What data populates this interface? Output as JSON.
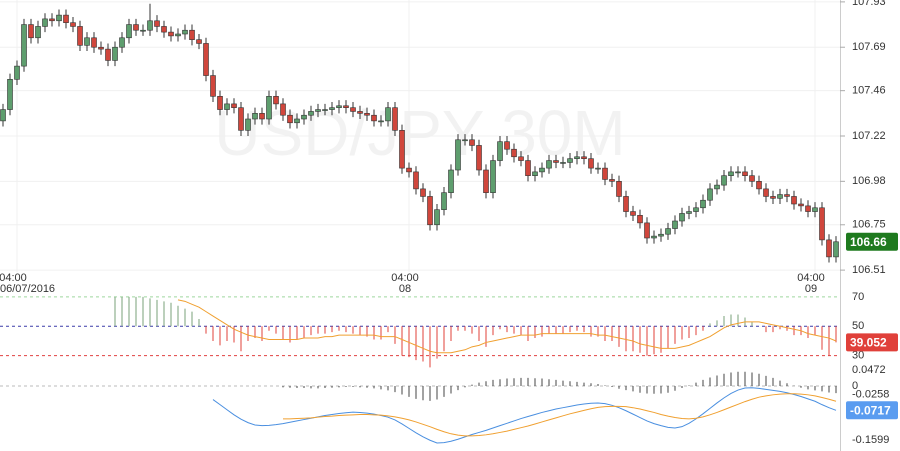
{
  "chart_data": {
    "type": "candlestick",
    "watermark": "USD/JPY 30M",
    "up_color": "#5e9e6e",
    "down_color": "#d0463c",
    "categories": [
      null,
      null,
      "04:00",
      null,
      null,
      null,
      null,
      null,
      null,
      null,
      null,
      null,
      null,
      null,
      null,
      null,
      null,
      null,
      null,
      null,
      null,
      null,
      null,
      null,
      null,
      null,
      null,
      null,
      null,
      null,
      null,
      null,
      null,
      null,
      null,
      null,
      null,
      null,
      null,
      null,
      null,
      null,
      null,
      null,
      null,
      null,
      null,
      null,
      null,
      null,
      null,
      null,
      null,
      null,
      null,
      null,
      null,
      null,
      "04:00",
      null,
      null,
      null,
      null,
      null,
      null,
      null,
      null,
      null,
      null,
      null,
      null,
      null,
      null,
      null,
      null,
      null,
      null,
      null,
      null,
      null,
      null,
      null,
      null,
      null,
      null,
      null,
      null,
      null,
      null,
      null,
      null,
      null,
      null,
      null,
      null,
      null,
      null,
      null,
      null,
      null,
      null,
      null,
      null,
      null,
      null,
      null,
      null,
      null,
      null,
      null,
      null,
      null,
      null,
      null,
      null,
      null,
      "04:00",
      null,
      null,
      null
    ],
    "category_dates": [
      null,
      null,
      "06/07/2016",
      null,
      null,
      null,
      null,
      null,
      null,
      null,
      null,
      null,
      null,
      null,
      null,
      null,
      null,
      null,
      null,
      null,
      null,
      null,
      null,
      null,
      null,
      null,
      null,
      null,
      null,
      null,
      null,
      null,
      null,
      null,
      null,
      null,
      null,
      null,
      null,
      null,
      null,
      null,
      null,
      null,
      null,
      null,
      null,
      null,
      null,
      null,
      null,
      null,
      null,
      null,
      null,
      null,
      null,
      null,
      "08",
      null,
      null,
      null,
      null,
      null,
      null,
      null,
      null,
      null,
      null,
      null,
      null,
      null,
      null,
      null,
      null,
      null,
      null,
      null,
      null,
      null,
      null,
      null,
      null,
      null,
      null,
      null,
      null,
      null,
      null,
      null,
      null,
      null,
      null,
      null,
      null,
      null,
      null,
      null,
      null,
      null,
      null,
      null,
      null,
      null,
      null,
      null,
      null,
      null,
      null,
      null,
      null,
      null,
      null,
      null,
      null,
      null,
      "09",
      null,
      null,
      null
    ],
    "open": [
      107.3,
      107.36,
      107.52,
      107.59,
      107.81,
      107.74,
      107.8,
      107.84,
      107.83,
      107.86,
      107.82,
      107.8,
      107.7,
      107.74,
      107.69,
      107.68,
      107.62,
      107.69,
      107.74,
      107.81,
      107.78,
      107.78,
      107.83,
      107.8,
      107.77,
      107.75,
      107.76,
      107.78,
      107.73,
      107.71,
      107.54,
      107.43,
      107.36,
      107.39,
      107.37,
      107.25,
      107.31,
      107.34,
      107.31,
      107.43,
      107.39,
      107.33,
      107.29,
      107.31,
      107.33,
      107.35,
      107.36,
      107.36,
      107.37,
      107.38,
      107.37,
      107.35,
      107.34,
      107.33,
      107.3,
      107.3,
      107.37,
      107.25,
      107.05,
      107.03,
      106.94,
      106.9,
      106.75,
      106.83,
      106.92,
      107.04,
      107.2,
      107.2,
      107.17,
      107.04,
      106.92,
      107.09,
      107.19,
      107.15,
      107.11,
      107.09,
      107.01,
      107.03,
      107.05,
      107.09,
      107.08,
      107.08,
      107.1,
      107.11,
      107.1,
      107.05,
      107.05,
      106.99,
      106.98,
      106.9,
      106.82,
      106.8,
      106.76,
      106.68,
      106.69,
      106.7,
      106.73,
      106.77,
      106.81,
      106.82,
      106.84,
      106.88,
      106.94,
      106.96,
      107.01,
      107.03,
      107.03,
      107.01,
      106.98,
      106.94,
      106.9,
      106.89,
      106.91,
      106.9,
      106.86,
      106.85,
      106.82,
      106.84,
      106.67,
      106.58
    ],
    "high": [
      107.39,
      107.55,
      107.62,
      107.84,
      107.84,
      107.83,
      107.87,
      107.87,
      107.89,
      107.89,
      107.85,
      107.83,
      107.77,
      107.77,
      107.72,
      107.71,
      107.72,
      107.77,
      107.84,
      107.84,
      107.81,
      107.92,
      107.86,
      107.83,
      107.8,
      107.79,
      107.81,
      107.81,
      107.76,
      107.74,
      107.57,
      107.46,
      107.42,
      107.42,
      107.4,
      107.34,
      107.37,
      107.37,
      107.46,
      107.46,
      107.42,
      107.36,
      107.34,
      107.36,
      107.38,
      107.39,
      107.39,
      107.4,
      107.41,
      107.41,
      107.4,
      107.38,
      107.37,
      107.36,
      107.33,
      107.4,
      107.4,
      107.28,
      107.08,
      107.06,
      106.97,
      106.93,
      106.86,
      106.95,
      107.07,
      107.23,
      107.23,
      107.23,
      107.2,
      107.07,
      107.12,
      107.22,
      107.22,
      107.18,
      107.14,
      107.12,
      107.06,
      107.08,
      107.12,
      107.12,
      107.11,
      107.13,
      107.14,
      107.14,
      107.13,
      107.08,
      107.08,
      107.02,
      107.01,
      106.93,
      106.85,
      106.83,
      106.79,
      106.72,
      106.73,
      106.76,
      106.8,
      106.84,
      106.85,
      106.87,
      106.91,
      106.97,
      106.99,
      107.04,
      107.06,
      107.06,
      107.06,
      107.04,
      107.01,
      106.97,
      106.93,
      106.94,
      106.94,
      106.93,
      106.89,
      106.88,
      106.87,
      106.87,
      106.7,
      106.69
    ],
    "low": [
      107.27,
      107.33,
      107.49,
      107.56,
      107.71,
      107.71,
      107.77,
      107.8,
      107.8,
      107.79,
      107.77,
      107.67,
      107.67,
      107.66,
      107.65,
      107.59,
      107.59,
      107.66,
      107.71,
      107.75,
      107.75,
      107.75,
      107.77,
      107.74,
      107.72,
      107.72,
      107.73,
      107.7,
      107.68,
      107.51,
      107.4,
      107.33,
      107.33,
      107.34,
      107.22,
      107.22,
      107.28,
      107.28,
      107.28,
      107.36,
      107.3,
      107.26,
      107.26,
      107.28,
      107.3,
      107.32,
      107.33,
      107.33,
      107.34,
      107.34,
      107.32,
      107.31,
      107.3,
      107.27,
      107.27,
      107.27,
      107.22,
      107.02,
      107.0,
      106.91,
      106.87,
      106.72,
      106.72,
      106.8,
      106.89,
      107.01,
      107.17,
      107.14,
      107.01,
      106.89,
      106.89,
      107.06,
      107.12,
      107.08,
      107.06,
      106.98,
      106.98,
      107.0,
      107.02,
      107.05,
      107.05,
      107.05,
      107.07,
      107.07,
      107.02,
      107.02,
      106.96,
      106.95,
      106.87,
      106.79,
      106.77,
      106.73,
      106.65,
      106.65,
      106.66,
      106.67,
      106.7,
      106.74,
      106.78,
      106.79,
      106.81,
      106.85,
      106.91,
      106.93,
      106.98,
      107.0,
      106.98,
      106.95,
      106.91,
      106.87,
      106.86,
      106.86,
      106.87,
      106.83,
      106.82,
      106.79,
      106.79,
      106.64,
      106.55,
      106.55
    ],
    "close": [
      107.36,
      107.52,
      107.59,
      107.81,
      107.74,
      107.8,
      107.84,
      107.83,
      107.86,
      107.82,
      107.8,
      107.7,
      107.74,
      107.69,
      107.68,
      107.62,
      107.69,
      107.74,
      107.81,
      107.78,
      107.78,
      107.83,
      107.8,
      107.77,
      107.75,
      107.76,
      107.78,
      107.73,
      107.71,
      107.54,
      107.43,
      107.36,
      107.39,
      107.37,
      107.25,
      107.31,
      107.34,
      107.31,
      107.43,
      107.39,
      107.33,
      107.29,
      107.31,
      107.33,
      107.35,
      107.36,
      107.36,
      107.37,
      107.38,
      107.37,
      107.35,
      107.34,
      107.33,
      107.3,
      107.3,
      107.37,
      107.25,
      107.05,
      107.03,
      106.94,
      106.9,
      106.75,
      106.83,
      106.92,
      107.04,
      107.2,
      107.2,
      107.17,
      107.04,
      106.92,
      107.09,
      107.19,
      107.15,
      107.11,
      107.09,
      107.01,
      107.03,
      107.05,
      107.09,
      107.08,
      107.08,
      107.1,
      107.11,
      107.1,
      107.05,
      107.05,
      106.99,
      106.98,
      106.9,
      106.82,
      106.8,
      106.76,
      106.68,
      106.69,
      106.7,
      106.73,
      106.77,
      106.81,
      106.82,
      106.84,
      106.88,
      106.94,
      106.96,
      107.01,
      107.03,
      107.03,
      107.01,
      106.98,
      106.94,
      106.9,
      106.89,
      106.91,
      106.9,
      106.86,
      106.85,
      106.82,
      106.84,
      106.67,
      106.58,
      106.66
    ],
    "ylim": [
      106.5,
      107.94
    ],
    "yticks": [
      107.93,
      107.69,
      107.46,
      107.22,
      106.98,
      106.75,
      106.51
    ],
    "last_label_color": "#1e7a1e",
    "rsi": {
      "ylim": [
        25,
        72
      ],
      "yticks": [
        70,
        50,
        30
      ],
      "tick_colors": [
        "#9fd69f",
        "#3a3aa8",
        "#e04040"
      ],
      "label_color": "#e0403a",
      "values": [
        null,
        null,
        null,
        null,
        null,
        null,
        null,
        null,
        null,
        null,
        null,
        null,
        null,
        null,
        null,
        null,
        70,
        70,
        70,
        70,
        70,
        69,
        68,
        67,
        66,
        64,
        62,
        60,
        55,
        45,
        40,
        37,
        40,
        39,
        33,
        40,
        42,
        40,
        47,
        45,
        41,
        39,
        41,
        42,
        44,
        45,
        45,
        46,
        47,
        46,
        45,
        44,
        43,
        41,
        41,
        46,
        38,
        30,
        29,
        27,
        26,
        22,
        28,
        33,
        40,
        47,
        47,
        45,
        40,
        36,
        44,
        48,
        46,
        45,
        44,
        40,
        42,
        43,
        45,
        45,
        45,
        46,
        47,
        46,
        43,
        43,
        40,
        40,
        36,
        33,
        33,
        32,
        30,
        31,
        32,
        35,
        38,
        41,
        42,
        44,
        47,
        52,
        54,
        57,
        58,
        58,
        56,
        53,
        50,
        46,
        46,
        48,
        47,
        44,
        44,
        42,
        44,
        34,
        30,
        39.052
      ],
      "ma_color": "#f0a030",
      "ma": [
        null,
        null,
        null,
        null,
        null,
        null,
        null,
        null,
        null,
        null,
        null,
        null,
        null,
        null,
        null,
        null,
        null,
        null,
        null,
        null,
        null,
        null,
        null,
        null,
        null,
        68,
        67,
        65,
        63,
        60,
        57,
        54,
        51,
        48,
        46,
        44,
        43,
        42,
        41,
        41,
        41,
        41,
        41,
        42,
        42,
        42,
        43,
        43,
        44,
        44,
        44,
        44,
        44,
        44,
        43,
        43,
        43,
        41,
        39,
        37,
        35,
        33,
        32,
        32,
        32,
        33,
        34,
        36,
        37,
        39,
        40,
        41,
        42,
        43,
        44,
        44,
        44,
        45,
        45,
        45,
        45,
        45,
        45,
        45,
        45,
        44,
        44,
        43,
        42,
        41,
        40,
        38,
        37,
        36,
        35,
        35,
        35,
        36,
        37,
        39,
        41,
        43,
        46,
        49,
        51,
        52,
        53,
        53,
        53,
        52,
        51,
        50,
        49,
        48,
        47,
        45,
        44,
        43,
        42,
        40
      ]
    },
    "macd": {
      "ylim": [
        -0.177,
        0.059
      ],
      "yticks": [
        0.0472,
        0,
        -0.0258,
        -0.1599
      ],
      "line_color": "#4a8fe0",
      "label_color": "#5a9cf0",
      "signal_color": "#f0a030",
      "line": [
        null,
        null,
        null,
        null,
        null,
        null,
        null,
        null,
        null,
        null,
        null,
        null,
        null,
        null,
        null,
        null,
        null,
        null,
        null,
        null,
        null,
        null,
        null,
        null,
        null,
        null,
        null,
        null,
        null,
        null,
        -0.04,
        -0.055,
        -0.07,
        -0.085,
        -0.098,
        -0.108,
        -0.115,
        -0.117,
        -0.116,
        -0.114,
        -0.111,
        -0.107,
        -0.103,
        -0.099,
        -0.095,
        -0.091,
        -0.087,
        -0.084,
        -0.081,
        -0.079,
        -0.077,
        -0.078,
        -0.08,
        -0.083,
        -0.087,
        -0.092,
        -0.1,
        -0.112,
        -0.125,
        -0.138,
        -0.15,
        -0.16,
        -0.168,
        -0.167,
        -0.163,
        -0.157,
        -0.15,
        -0.143,
        -0.137,
        -0.131,
        -0.124,
        -0.117,
        -0.11,
        -0.103,
        -0.096,
        -0.09,
        -0.084,
        -0.078,
        -0.073,
        -0.068,
        -0.064,
        -0.06,
        -0.056,
        -0.053,
        -0.051,
        -0.05,
        -0.052,
        -0.057,
        -0.064,
        -0.073,
        -0.083,
        -0.093,
        -0.103,
        -0.111,
        -0.117,
        -0.122,
        -0.124,
        -0.12,
        -0.11,
        -0.097,
        -0.082,
        -0.066,
        -0.05,
        -0.035,
        -0.022,
        -0.012,
        -0.006,
        -0.005,
        -0.007,
        -0.01,
        -0.013,
        -0.016,
        -0.02,
        -0.025,
        -0.031,
        -0.038,
        -0.045,
        -0.055,
        -0.064,
        -0.0717
      ],
      "signal": [
        null,
        null,
        null,
        null,
        null,
        null,
        null,
        null,
        null,
        null,
        null,
        null,
        null,
        null,
        null,
        null,
        null,
        null,
        null,
        null,
        null,
        null,
        null,
        null,
        null,
        null,
        null,
        null,
        null,
        null,
        null,
        null,
        null,
        null,
        null,
        null,
        null,
        null,
        null,
        null,
        -0.097,
        -0.097,
        -0.096,
        -0.095,
        -0.094,
        -0.092,
        -0.09,
        -0.089,
        -0.087,
        -0.086,
        -0.085,
        -0.084,
        -0.084,
        -0.085,
        -0.086,
        -0.088,
        -0.091,
        -0.095,
        -0.1,
        -0.106,
        -0.113,
        -0.12,
        -0.128,
        -0.135,
        -0.141,
        -0.145,
        -0.147,
        -0.147,
        -0.146,
        -0.144,
        -0.141,
        -0.137,
        -0.133,
        -0.128,
        -0.123,
        -0.118,
        -0.112,
        -0.106,
        -0.1,
        -0.094,
        -0.088,
        -0.082,
        -0.077,
        -0.072,
        -0.067,
        -0.063,
        -0.061,
        -0.06,
        -0.06,
        -0.061,
        -0.064,
        -0.068,
        -0.073,
        -0.078,
        -0.084,
        -0.089,
        -0.093,
        -0.096,
        -0.097,
        -0.095,
        -0.091,
        -0.085,
        -0.078,
        -0.07,
        -0.062,
        -0.054,
        -0.046,
        -0.039,
        -0.033,
        -0.029,
        -0.026,
        -0.024,
        -0.023,
        -0.023,
        -0.024,
        -0.026,
        -0.029,
        -0.034,
        -0.039,
        -0.045
      ],
      "histogram": [
        null,
        null,
        null,
        null,
        null,
        null,
        null,
        null,
        null,
        null,
        null,
        null,
        null,
        null,
        null,
        null,
        null,
        null,
        null,
        null,
        null,
        null,
        null,
        null,
        null,
        null,
        null,
        null,
        null,
        null,
        null,
        null,
        null,
        null,
        null,
        null,
        null,
        null,
        null,
        null,
        -0.004,
        -0.005,
        -0.006,
        -0.006,
        -0.007,
        -0.007,
        -0.006,
        -0.005,
        -0.004,
        -0.003,
        -0.003,
        -0.004,
        -0.005,
        -0.007,
        -0.01,
        -0.013,
        -0.018,
        -0.025,
        -0.032,
        -0.038,
        -0.042,
        -0.044,
        -0.04,
        -0.032,
        -0.022,
        -0.012,
        -0.004,
        0.004,
        0.01,
        0.014,
        0.018,
        0.02,
        0.022,
        0.023,
        0.024,
        0.024,
        0.023,
        0.022,
        0.02,
        0.018,
        0.016,
        0.014,
        0.012,
        0.01,
        0.008,
        0.006,
        0.002,
        -0.003,
        -0.008,
        -0.012,
        -0.016,
        -0.02,
        -0.022,
        -0.023,
        -0.022,
        -0.02,
        -0.014,
        -0.006,
        0.002,
        0.01,
        0.018,
        0.025,
        0.031,
        0.036,
        0.04,
        0.042,
        0.042,
        0.04,
        0.036,
        0.03,
        0.024,
        0.016,
        0.008,
        0.001,
        -0.005,
        -0.01,
        -0.013,
        -0.016,
        -0.019,
        -0.021
      ]
    }
  }
}
